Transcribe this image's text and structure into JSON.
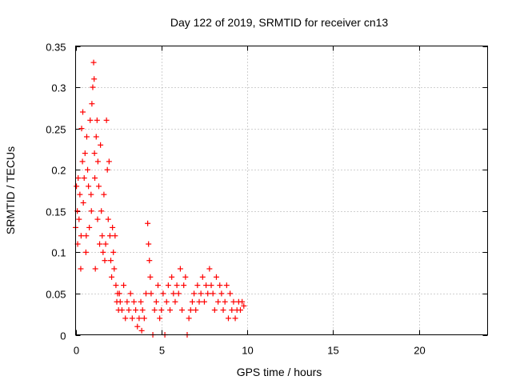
{
  "chart_data": {
    "type": "scatter",
    "title": "Day 122 of 2019, SRMTID for receiver cn13",
    "xlabel": "GPS time / hours",
    "ylabel": "SRMTID / TECUs",
    "xlim": [
      0,
      24
    ],
    "ylim": [
      0,
      0.35
    ],
    "xticks": [
      0,
      5,
      10,
      15,
      20
    ],
    "xtick_labels": [
      "0",
      "5",
      "10",
      "15",
      "20"
    ],
    "yticks": [
      0,
      0.05,
      0.1,
      0.15,
      0.2,
      0.25,
      0.3,
      0.35
    ],
    "ytick_labels": [
      "0",
      "0.05",
      "0.1",
      "0.15",
      "0.2",
      "0.25",
      "0.3",
      "0.35"
    ],
    "grid": true,
    "marker": "+",
    "series": [
      {
        "name": "SRMTID",
        "color": "#ff0000",
        "points": [
          [
            0.0,
            0.13
          ],
          [
            0.05,
            0.18
          ],
          [
            0.1,
            0.15
          ],
          [
            0.12,
            0.11
          ],
          [
            0.15,
            0.19
          ],
          [
            0.2,
            0.14
          ],
          [
            0.25,
            0.17
          ],
          [
            0.3,
            0.08
          ],
          [
            0.32,
            0.12
          ],
          [
            0.35,
            0.25
          ],
          [
            0.4,
            0.21
          ],
          [
            0.42,
            0.27
          ],
          [
            0.45,
            0.16
          ],
          [
            0.5,
            0.19
          ],
          [
            0.55,
            0.22
          ],
          [
            0.6,
            0.1
          ],
          [
            0.62,
            0.12
          ],
          [
            0.65,
            0.24
          ],
          [
            0.7,
            0.2
          ],
          [
            0.75,
            0.18
          ],
          [
            0.8,
            0.13
          ],
          [
            0.85,
            0.26
          ],
          [
            0.9,
            0.17
          ],
          [
            0.92,
            0.15
          ],
          [
            0.95,
            0.28
          ],
          [
            1.0,
            0.3
          ],
          [
            1.05,
            0.33
          ],
          [
            1.08,
            0.31
          ],
          [
            1.1,
            0.22
          ],
          [
            1.12,
            0.19
          ],
          [
            1.15,
            0.08
          ],
          [
            1.2,
            0.24
          ],
          [
            1.25,
            0.26
          ],
          [
            1.28,
            0.14
          ],
          [
            1.3,
            0.21
          ],
          [
            1.35,
            0.18
          ],
          [
            1.4,
            0.11
          ],
          [
            1.45,
            0.23
          ],
          [
            1.5,
            0.15
          ],
          [
            1.55,
            0.12
          ],
          [
            1.6,
            0.1
          ],
          [
            1.65,
            0.17
          ],
          [
            1.7,
            0.09
          ],
          [
            1.75,
            0.11
          ],
          [
            1.8,
            0.26
          ],
          [
            1.85,
            0.2
          ],
          [
            1.9,
            0.14
          ],
          [
            1.95,
            0.21
          ],
          [
            2.0,
            0.12
          ],
          [
            2.05,
            0.09
          ],
          [
            2.1,
            0.07
          ],
          [
            2.15,
            0.13
          ],
          [
            2.2,
            0.1
          ],
          [
            2.25,
            0.08
          ],
          [
            2.3,
            0.12
          ],
          [
            2.35,
            0.06
          ],
          [
            2.4,
            0.04
          ],
          [
            2.45,
            0.05
          ],
          [
            2.5,
            0.03
          ],
          [
            2.55,
            0.05
          ],
          [
            2.6,
            0.04
          ],
          [
            2.7,
            0.03
          ],
          [
            2.8,
            0.06
          ],
          [
            2.9,
            0.02
          ],
          [
            3.0,
            0.04
          ],
          [
            3.1,
            0.03
          ],
          [
            3.2,
            0.05
          ],
          [
            3.3,
            0.02
          ],
          [
            3.4,
            0.04
          ],
          [
            3.5,
            0.03
          ],
          [
            3.6,
            0.01
          ],
          [
            3.7,
            0.02
          ],
          [
            3.8,
            0.04
          ],
          [
            3.85,
            0.005
          ],
          [
            3.9,
            0.03
          ],
          [
            4.0,
            0.02
          ],
          [
            4.1,
            0.05
          ],
          [
            4.2,
            0.135
          ],
          [
            4.25,
            0.11
          ],
          [
            4.3,
            0.09
          ],
          [
            4.35,
            0.07
          ],
          [
            4.4,
            0.05
          ],
          [
            4.5,
            0.0
          ],
          [
            4.6,
            0.03
          ],
          [
            4.7,
            0.04
          ],
          [
            4.8,
            0.06
          ],
          [
            4.9,
            0.02
          ],
          [
            5.0,
            0.03
          ],
          [
            5.1,
            0.05
          ],
          [
            5.2,
            0.0
          ],
          [
            5.3,
            0.04
          ],
          [
            5.4,
            0.06
          ],
          [
            5.5,
            0.03
          ],
          [
            5.6,
            0.07
          ],
          [
            5.7,
            0.05
          ],
          [
            5.8,
            0.04
          ],
          [
            5.9,
            0.06
          ],
          [
            6.0,
            0.05
          ],
          [
            6.1,
            0.08
          ],
          [
            6.2,
            0.03
          ],
          [
            6.3,
            0.06
          ],
          [
            6.4,
            0.07
          ],
          [
            6.5,
            0.0
          ],
          [
            6.6,
            0.02
          ],
          [
            6.7,
            0.03
          ],
          [
            6.8,
            0.04
          ],
          [
            6.9,
            0.05
          ],
          [
            7.0,
            0.03
          ],
          [
            7.1,
            0.06
          ],
          [
            7.2,
            0.04
          ],
          [
            7.3,
            0.05
          ],
          [
            7.4,
            0.07
          ],
          [
            7.5,
            0.04
          ],
          [
            7.6,
            0.06
          ],
          [
            7.7,
            0.05
          ],
          [
            7.8,
            0.08
          ],
          [
            7.9,
            0.06
          ],
          [
            8.0,
            0.05
          ],
          [
            8.1,
            0.03
          ],
          [
            8.2,
            0.07
          ],
          [
            8.3,
            0.04
          ],
          [
            8.4,
            0.06
          ],
          [
            8.5,
            0.05
          ],
          [
            8.6,
            0.03
          ],
          [
            8.7,
            0.04
          ],
          [
            8.8,
            0.06
          ],
          [
            8.9,
            0.02
          ],
          [
            9.0,
            0.05
          ],
          [
            9.1,
            0.03
          ],
          [
            9.2,
            0.04
          ],
          [
            9.3,
            0.02
          ],
          [
            9.4,
            0.03
          ],
          [
            9.5,
            0.04
          ],
          [
            9.6,
            0.03
          ],
          [
            9.7,
            0.04
          ],
          [
            9.8,
            0.035
          ]
        ]
      }
    ]
  }
}
